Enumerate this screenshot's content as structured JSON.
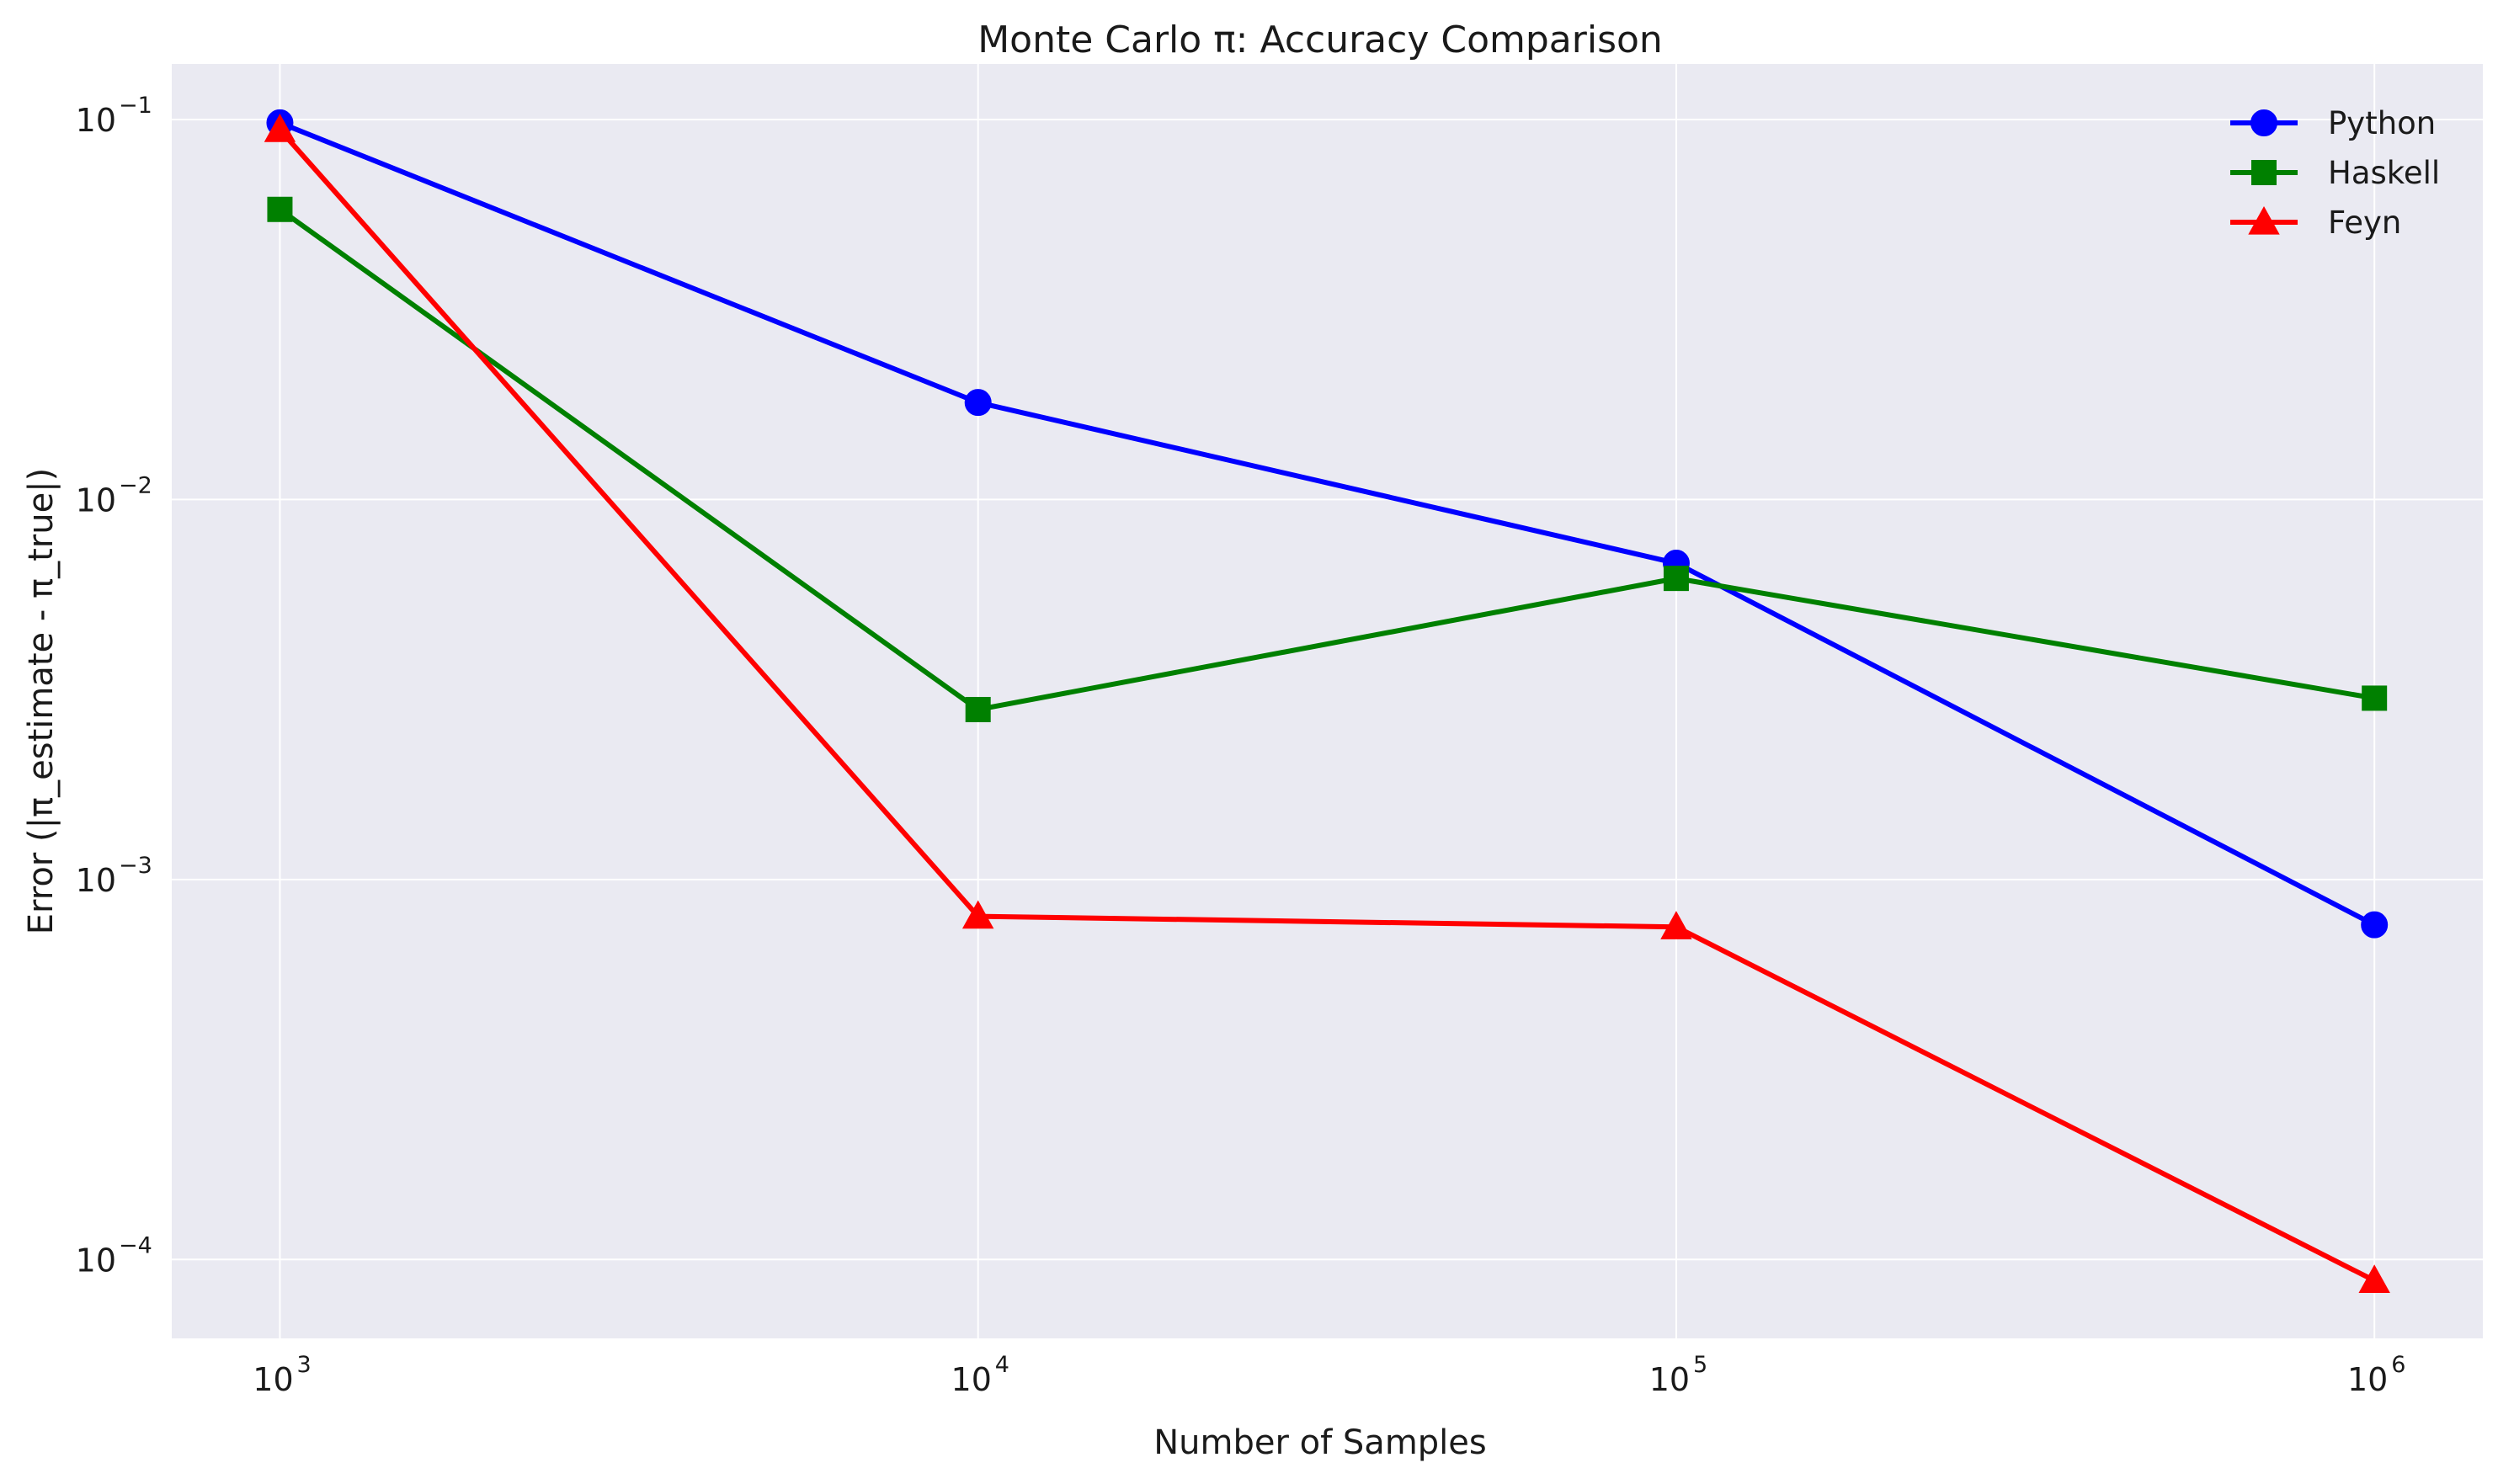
{
  "chart_data": {
    "type": "line",
    "title": "Monte Carlo π: Accuracy Comparison",
    "xlabel": "Number of Samples",
    "ylabel": "Error (|π_estimate - π_true|)",
    "xscale": "log",
    "yscale": "log",
    "xlim": [
      700,
      1430000
    ],
    "ylim": [
      6.2e-05,
      0.14
    ],
    "grid": true,
    "legend_position": "top-right",
    "x": [
      1000,
      10000,
      100000,
      1000000
    ],
    "x_ticks": [
      {
        "value": 1000,
        "base": "10",
        "exp": "3"
      },
      {
        "value": 10000,
        "base": "10",
        "exp": "4"
      },
      {
        "value": 100000,
        "base": "10",
        "exp": "5"
      },
      {
        "value": 1000000,
        "base": "10",
        "exp": "6"
      }
    ],
    "y_ticks": [
      {
        "value": 0.1,
        "base": "10",
        "exp": "−1"
      },
      {
        "value": 0.01,
        "base": "10",
        "exp": "−2"
      },
      {
        "value": 0.001,
        "base": "10",
        "exp": "−3"
      },
      {
        "value": 0.0001,
        "base": "10",
        "exp": "−4"
      }
    ],
    "series": [
      {
        "name": "Python",
        "color": "#0000ff",
        "marker": "circle",
        "values": [
          0.098,
          0.018,
          0.0068,
          0.00076
        ]
      },
      {
        "name": "Haskell",
        "color": "#008000",
        "marker": "square",
        "values": [
          0.058,
          0.0028,
          0.0062,
          0.003
        ]
      },
      {
        "name": "Feyn",
        "color": "#ff0000",
        "marker": "triangle",
        "values": [
          0.094,
          0.0008,
          0.00075,
          8.8e-05
        ]
      }
    ],
    "colors": {
      "plot_background": "#eaeaf2",
      "grid": "#ffffff"
    }
  }
}
